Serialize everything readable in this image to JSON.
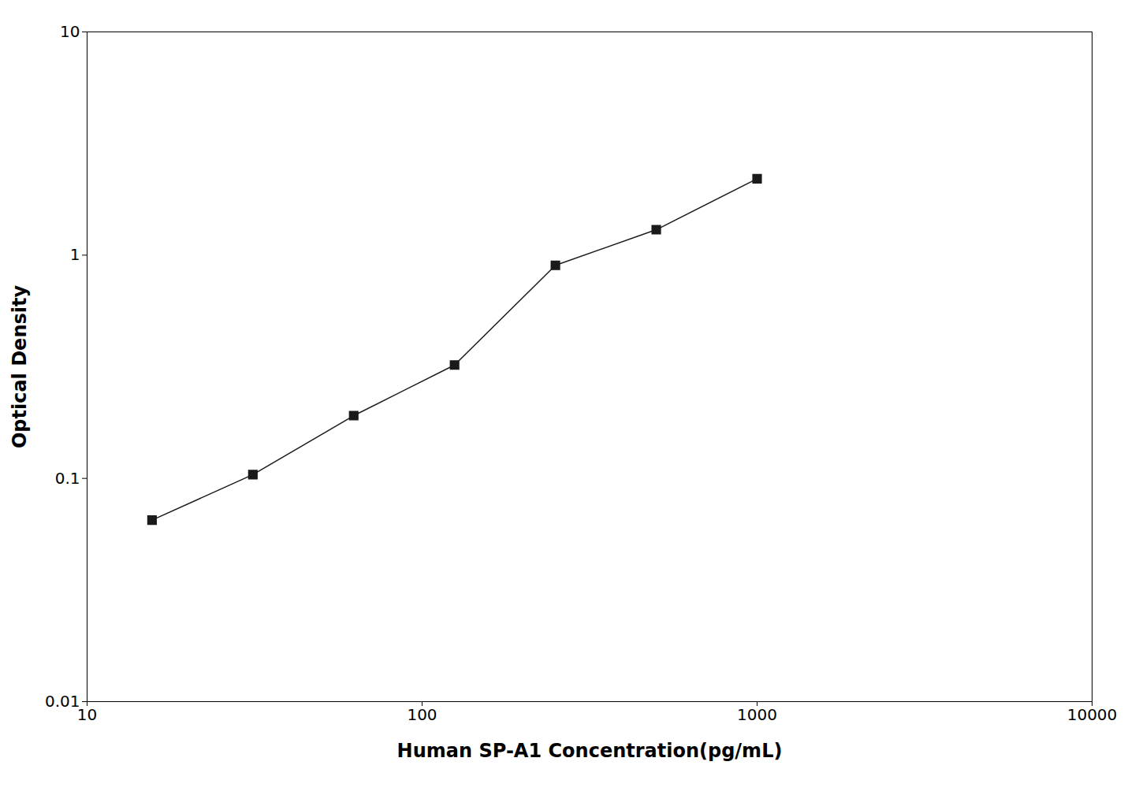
{
  "chart_data": {
    "type": "line",
    "x": [
      15.625,
      31.25,
      62.5,
      125,
      250,
      500,
      1000
    ],
    "values": [
      0.065,
      0.104,
      0.191,
      0.322,
      0.9,
      1.3,
      2.2
    ],
    "xlabel": "Human SP-A1 Concentration(pg/mL)",
    "ylabel": "Optical Density",
    "xlim": [
      10,
      10000
    ],
    "ylim": [
      0.01,
      10
    ],
    "xticks": [
      10,
      100,
      1000,
      10000
    ],
    "yticks": [
      0.01,
      0.1,
      1,
      10
    ],
    "log": true,
    "grid": false,
    "color": "#1a1a1a",
    "marker": "square"
  }
}
